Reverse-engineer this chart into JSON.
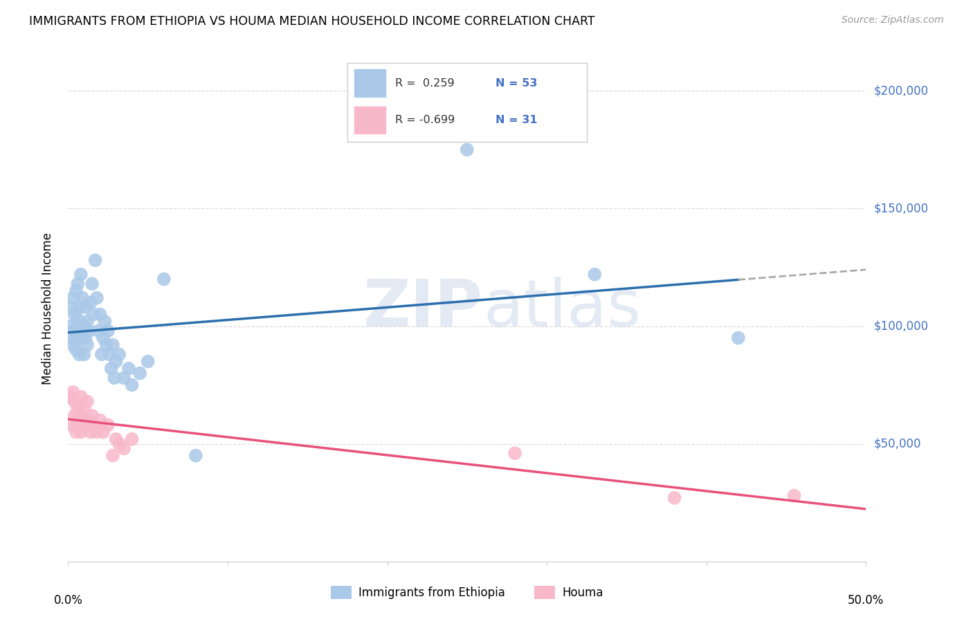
{
  "title": "IMMIGRANTS FROM ETHIOPIA VS HOUMA MEDIAN HOUSEHOLD INCOME CORRELATION CHART",
  "source": "Source: ZipAtlas.com",
  "ylabel": "Median Household Income",
  "blue_r": 0.259,
  "blue_n": 53,
  "pink_r": -0.699,
  "pink_n": 31,
  "blue_color": "#aac8e8",
  "blue_line_color": "#2c6fad",
  "pink_color": "#f7b8ca",
  "pink_line_color": "#e8517a",
  "dashed_line_color": "#aaaaaa",
  "watermark": "ZIPatlas",
  "ylim_min": 0,
  "ylim_max": 215000,
  "xlim_min": 0.0,
  "xlim_max": 0.5,
  "ytick_vals": [
    50000,
    100000,
    150000,
    200000
  ],
  "ytick_labels": [
    "$50,000",
    "$100,000",
    "$150,000",
    "$200,000"
  ],
  "grid_color": "#dddddd",
  "blue_x": [
    0.001,
    0.002,
    0.002,
    0.003,
    0.003,
    0.004,
    0.004,
    0.005,
    0.005,
    0.006,
    0.006,
    0.006,
    0.007,
    0.007,
    0.008,
    0.008,
    0.009,
    0.009,
    0.01,
    0.01,
    0.011,
    0.011,
    0.012,
    0.012,
    0.013,
    0.014,
    0.015,
    0.016,
    0.017,
    0.018,
    0.019,
    0.02,
    0.021,
    0.022,
    0.023,
    0.024,
    0.025,
    0.026,
    0.027,
    0.028,
    0.029,
    0.03,
    0.032,
    0.035,
    0.038,
    0.04,
    0.045,
    0.05,
    0.06,
    0.08,
    0.25,
    0.33,
    0.42
  ],
  "blue_y": [
    100000,
    108000,
    95000,
    112000,
    92000,
    105000,
    98000,
    115000,
    90000,
    103000,
    118000,
    95000,
    108000,
    88000,
    122000,
    100000,
    95000,
    112000,
    100000,
    88000,
    108000,
    95000,
    102000,
    92000,
    98000,
    110000,
    118000,
    105000,
    128000,
    112000,
    98000,
    105000,
    88000,
    95000,
    102000,
    92000,
    98000,
    88000,
    82000,
    92000,
    78000,
    85000,
    88000,
    78000,
    82000,
    75000,
    80000,
    85000,
    120000,
    45000,
    175000,
    122000,
    95000
  ],
  "pink_x": [
    0.001,
    0.002,
    0.003,
    0.004,
    0.004,
    0.005,
    0.006,
    0.006,
    0.007,
    0.008,
    0.008,
    0.009,
    0.01,
    0.011,
    0.012,
    0.013,
    0.014,
    0.015,
    0.016,
    0.018,
    0.02,
    0.022,
    0.025,
    0.028,
    0.03,
    0.032,
    0.035,
    0.04,
    0.28,
    0.38,
    0.455
  ],
  "pink_y": [
    70000,
    58000,
    72000,
    62000,
    68000,
    55000,
    65000,
    58000,
    62000,
    70000,
    55000,
    62000,
    65000,
    58000,
    68000,
    60000,
    55000,
    62000,
    58000,
    55000,
    60000,
    55000,
    58000,
    45000,
    52000,
    50000,
    48000,
    52000,
    46000,
    27000,
    28000
  ]
}
